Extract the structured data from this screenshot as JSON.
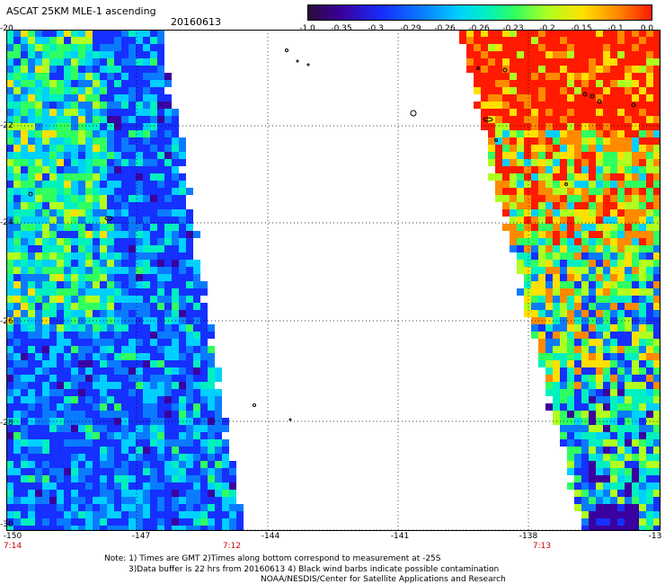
{
  "header": {
    "title": "ASCAT 25KM MLE-1 ascending",
    "date": "20160613"
  },
  "colorbar": {
    "ticks": [
      "-1.0",
      "-0.35",
      "-0.3",
      "-0.29",
      "-0.26",
      "-0.26",
      "-0.23",
      "-0.2",
      "-0.15",
      "-0.1",
      "0.0"
    ],
    "colors": [
      "#2a0a3a",
      "#3a00a0",
      "#1530ff",
      "#0a7bff",
      "#00d0ff",
      "#00f0c0",
      "#30ff60",
      "#b0ff20",
      "#ffe000",
      "#ff8a00",
      "#ff1a00"
    ]
  },
  "map": {
    "lat_labels": [
      "-20",
      "-22",
      "-24",
      "-26",
      "-28",
      "-30"
    ],
    "lon_labels": [
      "-150",
      "-147",
      "-144",
      "-141",
      "-138",
      "-13"
    ],
    "time_labels": [
      "7:14",
      "7:12",
      "7:13"
    ],
    "swath_colors": {
      "west": [
        "#1530ff",
        "#0a7bff",
        "#00d0ff",
        "#00f0c0",
        "#30ff60",
        "#b0ff20",
        "#ffe000",
        "#3a00a0"
      ],
      "east": [
        "#ff1a00",
        "#ff8a00",
        "#ffe000",
        "#b0ff20",
        "#30ff60",
        "#00f0c0",
        "#00d0ff",
        "#0a7bff",
        "#1530ff",
        "#3a00a0"
      ]
    }
  },
  "footer": {
    "line1": "Note: 1) Times are GMT 2)Times along bottom correspond to measurement at -25S",
    "line2": "3)Data buffer is 22 hrs from 20160613 4) Black wind barbs indicate possible contamination",
    "line3": "NOAA/NESDIS/Center for Satellite Applications and Research"
  }
}
